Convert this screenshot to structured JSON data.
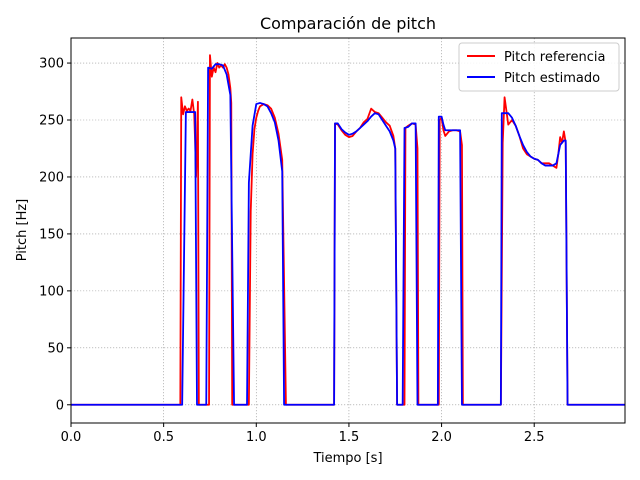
{
  "chart_data": {
    "type": "line",
    "title": "Comparación de pitch",
    "xlabel": "Tiempo [s]",
    "ylabel": "Pitch [Hz]",
    "xlim": [
      0,
      2.99
    ],
    "ylim": [
      -16,
      322
    ],
    "xticks": [
      0,
      0.5,
      1.0,
      1.5,
      2.0,
      2.5
    ],
    "xtick_labels": [
      "0.0",
      "0.5",
      "1.0",
      "1.5",
      "2.0",
      "2.5"
    ],
    "yticks": [
      0,
      50,
      100,
      150,
      200,
      250,
      300
    ],
    "ytick_labels": [
      "0",
      "50",
      "100",
      "150",
      "200",
      "250",
      "300"
    ],
    "grid": true,
    "legend_position": "top-right",
    "series": [
      {
        "name": "Pitch referencia",
        "color": "#ff0000",
        "points": [
          [
            0,
            0
          ],
          [
            0.59,
            0
          ],
          [
            0.595,
            270
          ],
          [
            0.605,
            255
          ],
          [
            0.615,
            262
          ],
          [
            0.625,
            258
          ],
          [
            0.635,
            260
          ],
          [
            0.645,
            258
          ],
          [
            0.655,
            268
          ],
          [
            0.665,
            255
          ],
          [
            0.67,
            230
          ],
          [
            0.675,
            200
          ],
          [
            0.685,
            266
          ],
          [
            0.69,
            0
          ],
          [
            0.745,
            0
          ],
          [
            0.75,
            307
          ],
          [
            0.76,
            288
          ],
          [
            0.77,
            296
          ],
          [
            0.78,
            292
          ],
          [
            0.79,
            300
          ],
          [
            0.8,
            296
          ],
          [
            0.81,
            298
          ],
          [
            0.82,
            296
          ],
          [
            0.83,
            299
          ],
          [
            0.84,
            296
          ],
          [
            0.85,
            290
          ],
          [
            0.86,
            278
          ],
          [
            0.865,
            265
          ],
          [
            0.87,
            0
          ],
          [
            0.96,
            0
          ],
          [
            0.97,
            170
          ],
          [
            0.98,
            220
          ],
          [
            0.99,
            242
          ],
          [
            1.0,
            252
          ],
          [
            1.01,
            258
          ],
          [
            1.02,
            262
          ],
          [
            1.04,
            264
          ],
          [
            1.06,
            263
          ],
          [
            1.08,
            260
          ],
          [
            1.1,
            252
          ],
          [
            1.12,
            238
          ],
          [
            1.14,
            215
          ],
          [
            1.16,
            0
          ],
          [
            1.42,
            0
          ],
          [
            1.425,
            247
          ],
          [
            1.44,
            246
          ],
          [
            1.46,
            241
          ],
          [
            1.48,
            237
          ],
          [
            1.5,
            235
          ],
          [
            1.52,
            236
          ],
          [
            1.54,
            240
          ],
          [
            1.56,
            243
          ],
          [
            1.58,
            248
          ],
          [
            1.6,
            251
          ],
          [
            1.62,
            260
          ],
          [
            1.64,
            257
          ],
          [
            1.66,
            256
          ],
          [
            1.68,
            252
          ],
          [
            1.7,
            248
          ],
          [
            1.72,
            245
          ],
          [
            1.74,
            236
          ],
          [
            1.75,
            225
          ],
          [
            1.76,
            0
          ],
          [
            1.8,
            0
          ],
          [
            1.805,
            243
          ],
          [
            1.82,
            245
          ],
          [
            1.84,
            247
          ],
          [
            1.86,
            246
          ],
          [
            1.87,
            225
          ],
          [
            1.875,
            0
          ],
          [
            1.985,
            0
          ],
          [
            1.99,
            250
          ],
          [
            2.0,
            252
          ],
          [
            2.01,
            241
          ],
          [
            2.02,
            236
          ],
          [
            2.04,
            240
          ],
          [
            2.06,
            241
          ],
          [
            2.08,
            241
          ],
          [
            2.1,
            240
          ],
          [
            2.11,
            228
          ],
          [
            2.115,
            0
          ],
          [
            2.32,
            0
          ],
          [
            2.33,
            230
          ],
          [
            2.34,
            270
          ],
          [
            2.35,
            258
          ],
          [
            2.36,
            246
          ],
          [
            2.38,
            250
          ],
          [
            2.4,
            245
          ],
          [
            2.42,
            236
          ],
          [
            2.44,
            225
          ],
          [
            2.46,
            220
          ],
          [
            2.48,
            218
          ],
          [
            2.5,
            216
          ],
          [
            2.52,
            215
          ],
          [
            2.54,
            212
          ],
          [
            2.56,
            212
          ],
          [
            2.58,
            212
          ],
          [
            2.6,
            210
          ],
          [
            2.62,
            208
          ],
          [
            2.63,
            220
          ],
          [
            2.64,
            235
          ],
          [
            2.65,
            230
          ],
          [
            2.66,
            240
          ],
          [
            2.67,
            230
          ],
          [
            2.68,
            0
          ],
          [
            2.99,
            0
          ]
        ]
      },
      {
        "name": "Pitch estimado",
        "color": "#0000ff",
        "points": [
          [
            0,
            0
          ],
          [
            0.6,
            0
          ],
          [
            0.62,
            257
          ],
          [
            0.67,
            257
          ],
          [
            0.68,
            0
          ],
          [
            0.73,
            0
          ],
          [
            0.74,
            296
          ],
          [
            0.76,
            295
          ],
          [
            0.78,
            299
          ],
          [
            0.8,
            299
          ],
          [
            0.82,
            298
          ],
          [
            0.84,
            290
          ],
          [
            0.86,
            272
          ],
          [
            0.88,
            0
          ],
          [
            0.95,
            0
          ],
          [
            0.96,
            195
          ],
          [
            0.98,
            245
          ],
          [
            1.0,
            264
          ],
          [
            1.02,
            265
          ],
          [
            1.04,
            264
          ],
          [
            1.06,
            262
          ],
          [
            1.08,
            256
          ],
          [
            1.1,
            248
          ],
          [
            1.12,
            232
          ],
          [
            1.14,
            205
          ],
          [
            1.15,
            0
          ],
          [
            1.42,
            0
          ],
          [
            1.425,
            247
          ],
          [
            1.44,
            247
          ],
          [
            1.46,
            242
          ],
          [
            1.48,
            239
          ],
          [
            1.5,
            237
          ],
          [
            1.52,
            238
          ],
          [
            1.54,
            240
          ],
          [
            1.56,
            243
          ],
          [
            1.58,
            246
          ],
          [
            1.6,
            249
          ],
          [
            1.62,
            253
          ],
          [
            1.64,
            256
          ],
          [
            1.66,
            255
          ],
          [
            1.68,
            250
          ],
          [
            1.7,
            245
          ],
          [
            1.72,
            240
          ],
          [
            1.74,
            232
          ],
          [
            1.75,
            225
          ],
          [
            1.76,
            0
          ],
          [
            1.79,
            0
          ],
          [
            1.8,
            243
          ],
          [
            1.82,
            244
          ],
          [
            1.84,
            247
          ],
          [
            1.86,
            247
          ],
          [
            1.87,
            0
          ],
          [
            1.98,
            0
          ],
          [
            1.985,
            253
          ],
          [
            2.0,
            253
          ],
          [
            2.01,
            246
          ],
          [
            2.02,
            241
          ],
          [
            2.04,
            241
          ],
          [
            2.06,
            241
          ],
          [
            2.08,
            241
          ],
          [
            2.1,
            241
          ],
          [
            2.11,
            0
          ],
          [
            2.32,
            0
          ],
          [
            2.325,
            256
          ],
          [
            2.36,
            256
          ],
          [
            2.38,
            252
          ],
          [
            2.4,
            245
          ],
          [
            2.42,
            236
          ],
          [
            2.44,
            228
          ],
          [
            2.46,
            222
          ],
          [
            2.48,
            218
          ],
          [
            2.5,
            216
          ],
          [
            2.52,
            215
          ],
          [
            2.54,
            212
          ],
          [
            2.56,
            210
          ],
          [
            2.58,
            210
          ],
          [
            2.6,
            210
          ],
          [
            2.62,
            212
          ],
          [
            2.64,
            228
          ],
          [
            2.66,
            232
          ],
          [
            2.67,
            232
          ],
          [
            2.68,
            0
          ],
          [
            2.99,
            0
          ]
        ]
      }
    ]
  }
}
